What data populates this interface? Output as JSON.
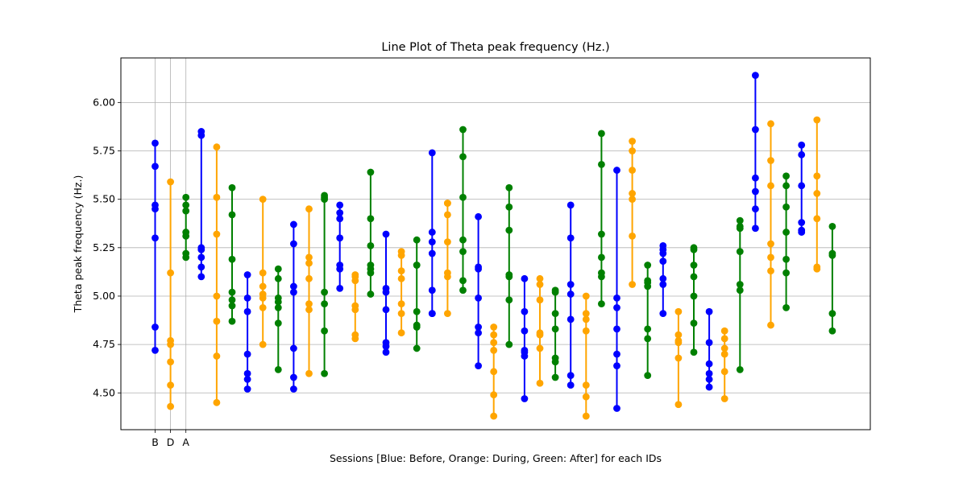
{
  "chart_data": {
    "type": "line",
    "title": "Line Plot of Theta peak frequency (Hz.)",
    "xlabel": "Sessions [Blue: Before, Orange: During, Green: After] for each IDs",
    "ylabel": "Theta peak frequency (Hz.)",
    "ylim": [
      4.31,
      6.23
    ],
    "yticks": [
      4.5,
      4.75,
      5.0,
      5.25,
      5.5,
      5.75,
      6.0
    ],
    "ytick_labels": [
      "4.50",
      "4.75",
      "5.00",
      "5.25",
      "5.50",
      "5.75",
      "6.00"
    ],
    "xticks": [
      "B",
      "D",
      "A"
    ],
    "grid": true,
    "colors": {
      "Before": "#0000ff",
      "During": "#ffa500",
      "After": "#008000"
    },
    "sessions_cycle": [
      "Before",
      "During",
      "After"
    ],
    "series": [
      {
        "values": [
          4.72,
          4.84,
          5.3,
          5.45,
          5.47,
          5.67,
          5.79
        ]
      },
      {
        "values": [
          4.43,
          4.54,
          4.66,
          4.75,
          4.77,
          5.12,
          5.59
        ]
      },
      {
        "values": [
          5.2,
          5.22,
          5.31,
          5.33,
          5.44,
          5.47,
          5.51
        ]
      },
      {
        "values": [
          5.1,
          5.15,
          5.2,
          5.24,
          5.25,
          5.83,
          5.85
        ]
      },
      {
        "values": [
          4.45,
          4.69,
          4.87,
          5.0,
          5.32,
          5.51,
          5.77
        ]
      },
      {
        "values": [
          4.87,
          4.95,
          4.98,
          5.02,
          5.19,
          5.42,
          5.56
        ]
      },
      {
        "values": [
          4.52,
          4.57,
          4.6,
          4.7,
          4.92,
          4.99,
          5.11
        ]
      },
      {
        "values": [
          4.75,
          4.94,
          4.99,
          5.01,
          5.05,
          5.12,
          5.5
        ]
      },
      {
        "values": [
          4.62,
          4.86,
          4.94,
          4.97,
          4.99,
          5.09,
          5.14
        ]
      },
      {
        "values": [
          4.52,
          4.58,
          4.73,
          5.02,
          5.05,
          5.27,
          5.37
        ]
      },
      {
        "values": [
          4.6,
          4.93,
          4.96,
          5.09,
          5.17,
          5.2,
          5.45
        ]
      },
      {
        "values": [
          4.6,
          4.82,
          4.96,
          5.02,
          5.5,
          5.51,
          5.52
        ]
      },
      {
        "values": [
          5.04,
          5.14,
          5.16,
          5.3,
          5.4,
          5.43,
          5.47
        ]
      },
      {
        "values": [
          4.78,
          4.8,
          4.93,
          4.95,
          5.08,
          5.1,
          5.11
        ]
      },
      {
        "values": [
          5.01,
          5.12,
          5.14,
          5.16,
          5.26,
          5.4,
          5.64
        ]
      },
      {
        "values": [
          4.71,
          4.74,
          4.76,
          4.93,
          5.02,
          5.04,
          5.32
        ]
      },
      {
        "values": [
          4.81,
          4.91,
          4.96,
          5.09,
          5.13,
          5.21,
          5.23
        ]
      },
      {
        "values": [
          4.73,
          4.84,
          4.85,
          4.92,
          5.16,
          5.16,
          5.29
        ]
      },
      {
        "values": [
          4.91,
          4.91,
          5.03,
          5.22,
          5.28,
          5.33,
          5.74
        ]
      },
      {
        "values": [
          4.91,
          5.1,
          5.12,
          5.28,
          5.42,
          5.48,
          5.48
        ]
      },
      {
        "values": [
          5.03,
          5.08,
          5.23,
          5.29,
          5.51,
          5.72,
          5.86
        ]
      },
      {
        "values": [
          4.64,
          4.81,
          4.84,
          4.99,
          5.14,
          5.15,
          5.41
        ]
      },
      {
        "values": [
          4.38,
          4.49,
          4.61,
          4.72,
          4.76,
          4.8,
          4.84
        ]
      },
      {
        "values": [
          4.75,
          4.98,
          5.1,
          5.11,
          5.34,
          5.46,
          5.56
        ]
      },
      {
        "values": [
          4.47,
          4.69,
          4.71,
          4.72,
          4.82,
          4.92,
          5.09
        ]
      },
      {
        "values": [
          4.55,
          4.73,
          4.8,
          4.81,
          4.98,
          5.06,
          5.09
        ]
      },
      {
        "values": [
          4.58,
          4.66,
          4.68,
          4.83,
          4.91,
          5.02,
          5.03
        ]
      },
      {
        "values": [
          4.54,
          4.59,
          4.88,
          5.01,
          5.06,
          5.3,
          5.47
        ]
      },
      {
        "values": [
          4.38,
          4.48,
          4.54,
          4.82,
          4.88,
          4.91,
          5.0
        ]
      },
      {
        "values": [
          4.96,
          5.1,
          5.12,
          5.2,
          5.32,
          5.68,
          5.84
        ]
      },
      {
        "values": [
          4.42,
          4.64,
          4.7,
          4.83,
          4.94,
          4.99,
          5.65
        ]
      },
      {
        "values": [
          5.06,
          5.31,
          5.5,
          5.53,
          5.65,
          5.75,
          5.8
        ]
      },
      {
        "values": [
          4.59,
          4.78,
          4.83,
          5.05,
          5.07,
          5.08,
          5.16
        ]
      },
      {
        "values": [
          4.91,
          5.06,
          5.09,
          5.18,
          5.22,
          5.24,
          5.26
        ]
      },
      {
        "values": [
          4.44,
          4.68,
          4.76,
          4.77,
          4.8,
          4.92
        ]
      },
      {
        "values": [
          4.71,
          4.86,
          5.0,
          5.1,
          5.16,
          5.24,
          5.25
        ]
      },
      {
        "values": [
          4.53,
          4.57,
          4.6,
          4.65,
          4.76,
          4.92
        ]
      },
      {
        "values": [
          4.47,
          4.61,
          4.7,
          4.73,
          4.78,
          4.82
        ]
      },
      {
        "values": [
          4.62,
          5.03,
          5.06,
          5.23,
          5.35,
          5.36,
          5.39
        ]
      },
      {
        "values": [
          5.35,
          5.45,
          5.54,
          5.61,
          5.86,
          6.14
        ]
      },
      {
        "values": [
          4.85,
          5.13,
          5.2,
          5.27,
          5.57,
          5.7,
          5.89
        ]
      },
      {
        "values": [
          4.94,
          5.12,
          5.19,
          5.33,
          5.46,
          5.57,
          5.62
        ]
      },
      {
        "values": [
          5.33,
          5.34,
          5.38,
          5.57,
          5.73,
          5.78
        ]
      },
      {
        "values": [
          5.14,
          5.15,
          5.4,
          5.53,
          5.62,
          5.91
        ]
      },
      {
        "values": [
          4.82,
          4.91,
          5.21,
          5.22,
          5.36
        ]
      }
    ]
  }
}
